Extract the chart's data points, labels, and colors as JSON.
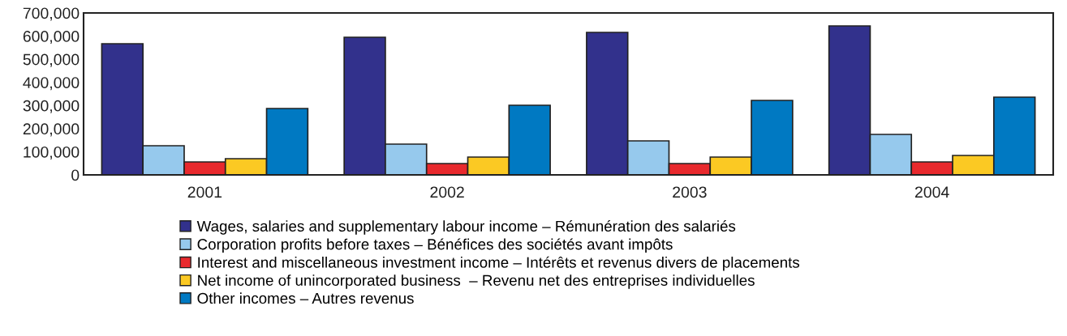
{
  "chart_data": {
    "type": "bar",
    "categories": [
      "2001",
      "2002",
      "2003",
      "2004"
    ],
    "series": [
      {
        "name": "Wages, salaries and supplementary labour income – Rémunération des salariés",
        "color": "#32318c",
        "values": [
          567000,
          595000,
          616000,
          644000
        ]
      },
      {
        "name": "Corporation profits before taxes – Bénéfices des sociétés avant impôts",
        "color": "#96c9ed",
        "values": [
          126000,
          133000,
          147000,
          175000
        ]
      },
      {
        "name": "Interest and miscellaneous investment income – Intérêts et revenus divers de placements",
        "color": "#e8292d",
        "values": [
          56000,
          49000,
          49000,
          56000
        ]
      },
      {
        "name": "Net income of unincorporated business  – Revenu net des entreprises individuelles",
        "color": "#fbc923",
        "values": [
          70000,
          77000,
          77000,
          84000
        ]
      },
      {
        "name": "Other incomes – Autres revenus",
        "color": "#0079c2",
        "values": [
          287000,
          301000,
          322000,
          336000
        ]
      }
    ],
    "ylim": [
      0,
      700000
    ],
    "yticks": [
      {
        "value": 0,
        "label": "0"
      },
      {
        "value": 100000,
        "label": "100,000"
      },
      {
        "value": 200000,
        "label": "200,000"
      },
      {
        "value": 300000,
        "label": "300,000"
      },
      {
        "value": 400000,
        "label": "400,000"
      },
      {
        "value": 500000,
        "label": "500,000"
      },
      {
        "value": 600000,
        "label": "600,000"
      },
      {
        "value": 700000,
        "label": "700,000"
      }
    ],
    "grid": false,
    "legend": "bottom"
  }
}
